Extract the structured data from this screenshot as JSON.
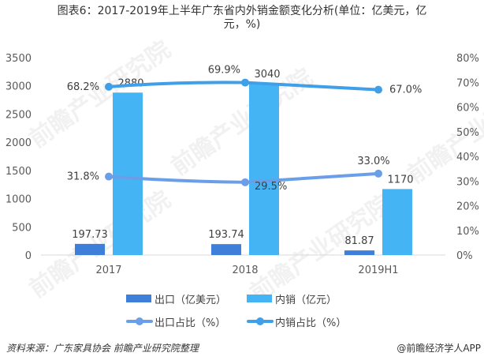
{
  "title": {
    "line1": "图表6：2017-2019年上半年广东省内外销金额变化分析(单位：亿美元，亿",
    "line2": "元，%)"
  },
  "colors": {
    "export_bar": "#3d7fd9",
    "domestic_bar": "#45b4f5",
    "export_share_line": "#6b9ee8",
    "domestic_share_line": "#3f9fe8",
    "axis_text": "#595959",
    "baseline": "#d9d9d9"
  },
  "chart_data": {
    "type": "bar+line",
    "title": "图表6：2017-2019年上半年广东省内外销金额变化分析(单位：亿美元，亿元，%)",
    "categories": [
      "2017",
      "2018",
      "2019H1"
    ],
    "series": [
      {
        "name": "出口（亿美元）",
        "type": "bar",
        "axis": "left",
        "values": [
          197.73,
          193.74,
          81.87
        ],
        "labels": [
          "197.73",
          "193.74",
          "81.87"
        ]
      },
      {
        "name": "内销（亿元）",
        "type": "bar",
        "axis": "left",
        "values": [
          2880,
          3040,
          1170
        ],
        "labels": [
          "2880",
          "3040",
          "1170"
        ]
      },
      {
        "name": "出口占比（%）",
        "type": "line",
        "axis": "right",
        "values": [
          31.8,
          29.5,
          33.0
        ],
        "labels": [
          "31.8%",
          "29.5%",
          "33.0%"
        ]
      },
      {
        "name": "内销占比（%）",
        "type": "line",
        "axis": "right",
        "values": [
          68.2,
          69.9,
          67.0
        ],
        "labels": [
          "68.2%",
          "69.9%",
          "67.0%"
        ]
      }
    ],
    "left_axis": {
      "ylim": [
        0,
        3500
      ],
      "ticks": [
        "0",
        "500",
        "1000",
        "1500",
        "2000",
        "2500",
        "3000",
        "3500"
      ]
    },
    "right_axis": {
      "ylim": [
        0,
        80
      ],
      "ticks": [
        "0%",
        "10%",
        "20%",
        "30%",
        "40%",
        "50%",
        "60%",
        "70%",
        "80%"
      ]
    },
    "xlabel": "",
    "ylabel": "",
    "grid": false,
    "legend_position": "bottom"
  },
  "legend": {
    "export": "出口（亿美元）",
    "domestic": "内销（亿元）",
    "export_share": "出口占比（%）",
    "domestic_share": "内销占比（%）"
  },
  "footer": {
    "source": "资料来源：广东家具协会 前瞻产业研究院整理",
    "brand": "@前瞻经济学人APP"
  },
  "watermark": {
    "text": "前瞻产业研究院"
  }
}
